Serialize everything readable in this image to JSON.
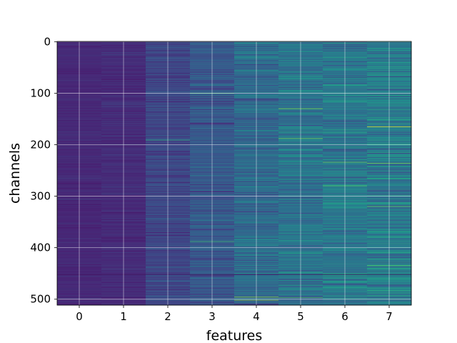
{
  "chart_data": {
    "type": "heatmap",
    "title": "",
    "xlabel": "features",
    "ylabel": "channels",
    "x_ticks": [
      0,
      1,
      2,
      3,
      4,
      5,
      6,
      7
    ],
    "y_ticks": [
      0,
      100,
      200,
      300,
      400,
      500
    ],
    "xlim": [
      -0.5,
      7.5
    ],
    "ylim": [
      511.5,
      -0.5
    ],
    "n_rows": 512,
    "n_cols": 8,
    "colormap": "viridis",
    "grid": true,
    "column_mean_value": [
      0.14,
      0.15,
      0.22,
      0.28,
      0.35,
      0.38,
      0.4,
      0.42
    ],
    "column_variability": [
      0.05,
      0.06,
      0.1,
      0.14,
      0.18,
      0.2,
      0.21,
      0.23
    ],
    "highlights": [
      {
        "row": 100,
        "col": 3,
        "value": 0.72
      },
      {
        "row": 130,
        "col": 5,
        "value": 0.82
      },
      {
        "row": 165,
        "col": 7,
        "value": 0.98
      },
      {
        "row": 188,
        "col": 5,
        "value": 0.8
      },
      {
        "row": 191,
        "col": 2,
        "value": 0.65
      },
      {
        "row": 234,
        "col": 6,
        "value": 0.78
      },
      {
        "row": 236,
        "col": 7,
        "value": 0.8
      },
      {
        "row": 280,
        "col": 6,
        "value": 0.72
      },
      {
        "row": 320,
        "col": 7,
        "value": 0.76
      },
      {
        "row": 388,
        "col": 3,
        "value": 0.68
      },
      {
        "row": 435,
        "col": 7,
        "value": 0.74
      },
      {
        "row": 496,
        "col": 4,
        "value": 0.85
      },
      {
        "row": 497,
        "col": 5,
        "value": 0.72
      },
      {
        "row": 502,
        "col": 4,
        "value": 0.82
      }
    ],
    "dark_rows": [
      452
    ]
  },
  "colors": {
    "viridis_low": "#440154",
    "viridis_mid": "#21918c",
    "viridis_high": "#fde725",
    "grid": "#ffffff"
  }
}
